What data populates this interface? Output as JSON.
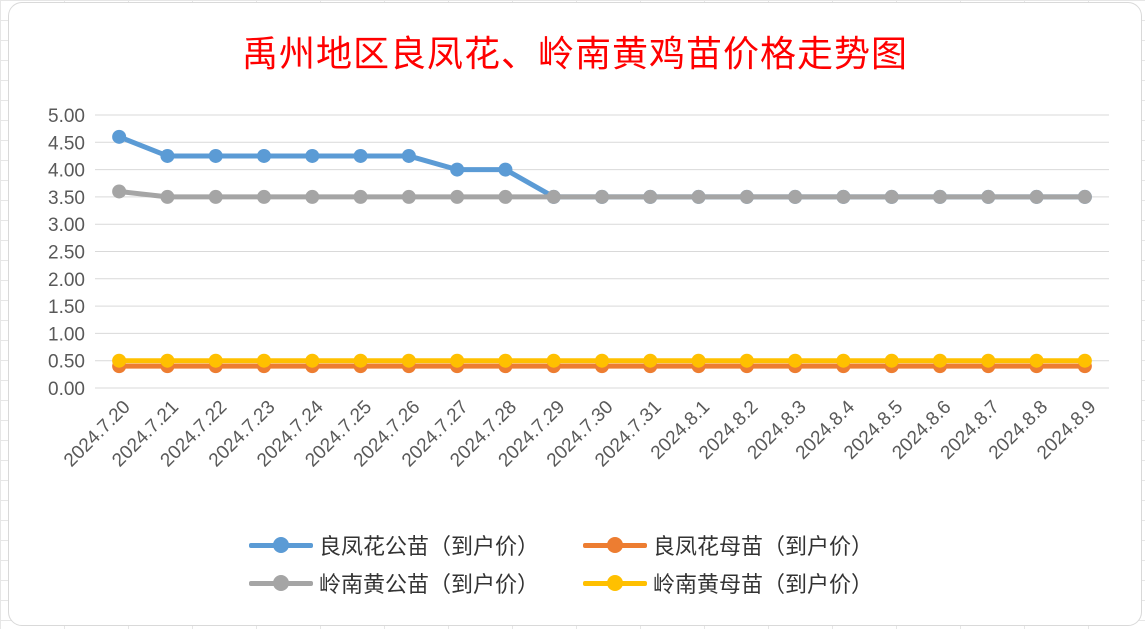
{
  "chart_data": {
    "type": "line",
    "title": "禹州地区良凤花、岭南黄鸡苗价格走势图",
    "xlabel": "",
    "ylabel": "",
    "ylim": [
      0,
      5
    ],
    "y_ticks": [
      "0.00",
      "0.50",
      "1.00",
      "1.50",
      "2.00",
      "2.50",
      "3.00",
      "3.50",
      "4.00",
      "4.50",
      "5.00"
    ],
    "grid": true,
    "legend_position": "bottom",
    "categories": [
      "2024.7.20",
      "2024.7.21",
      "2024.7.22",
      "2024.7.23",
      "2024.7.24",
      "2024.7.25",
      "2024.7.26",
      "2024.7.27",
      "2024.7.28",
      "2024.7.29",
      "2024.7.30",
      "2024.7.31",
      "2024.8.1",
      "2024.8.2",
      "2024.8.3",
      "2024.8.4",
      "2024.8.5",
      "2024.8.6",
      "2024.8.7",
      "2024.8.8",
      "2024.8.9"
    ],
    "series": [
      {
        "name": "良凤花公苗（到户价）",
        "color": "#5b9bd5",
        "values": [
          4.6,
          4.25,
          4.25,
          4.25,
          4.25,
          4.25,
          4.25,
          4.0,
          4.0,
          3.5,
          3.5,
          3.5,
          3.5,
          3.5,
          3.5,
          3.5,
          3.5,
          3.5,
          3.5,
          3.5,
          3.5
        ]
      },
      {
        "name": "良凤花母苗（到户价）",
        "color": "#ed7d31",
        "values": [
          0.4,
          0.4,
          0.4,
          0.4,
          0.4,
          0.4,
          0.4,
          0.4,
          0.4,
          0.4,
          0.4,
          0.4,
          0.4,
          0.4,
          0.4,
          0.4,
          0.4,
          0.4,
          0.4,
          0.4,
          0.4
        ]
      },
      {
        "name": "岭南黄公苗（到户价）",
        "color": "#a5a5a5",
        "values": [
          3.6,
          3.5,
          3.5,
          3.5,
          3.5,
          3.5,
          3.5,
          3.5,
          3.5,
          3.5,
          3.5,
          3.5,
          3.5,
          3.5,
          3.5,
          3.5,
          3.5,
          3.5,
          3.5,
          3.5,
          3.5
        ]
      },
      {
        "name": "岭南黄母苗（到户价）",
        "color": "#ffc000",
        "values": [
          0.5,
          0.5,
          0.5,
          0.5,
          0.5,
          0.5,
          0.5,
          0.5,
          0.5,
          0.5,
          0.5,
          0.5,
          0.5,
          0.5,
          0.5,
          0.5,
          0.5,
          0.5,
          0.5,
          0.5,
          0.5
        ]
      }
    ]
  },
  "style": {
    "title_color": "#ff0000",
    "grid_color": "#d9d9d9",
    "axis_text_color": "#595959"
  }
}
